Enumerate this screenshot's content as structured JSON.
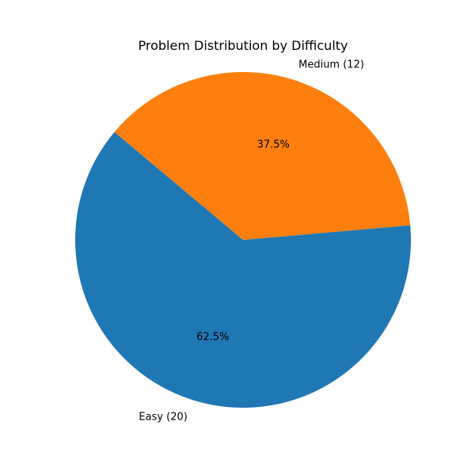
{
  "chart_data": {
    "type": "pie",
    "title": "Problem Distribution by Difficulty",
    "slices": [
      {
        "label": "Easy (20)",
        "value": 20,
        "percent_label": "62.5%",
        "color": "#1f77b4"
      },
      {
        "label": "Medium (12)",
        "value": 12,
        "percent_label": "37.5%",
        "color": "#ff7f0e"
      }
    ],
    "start_angle_deg": 140,
    "direction": "counterclockwise"
  }
}
